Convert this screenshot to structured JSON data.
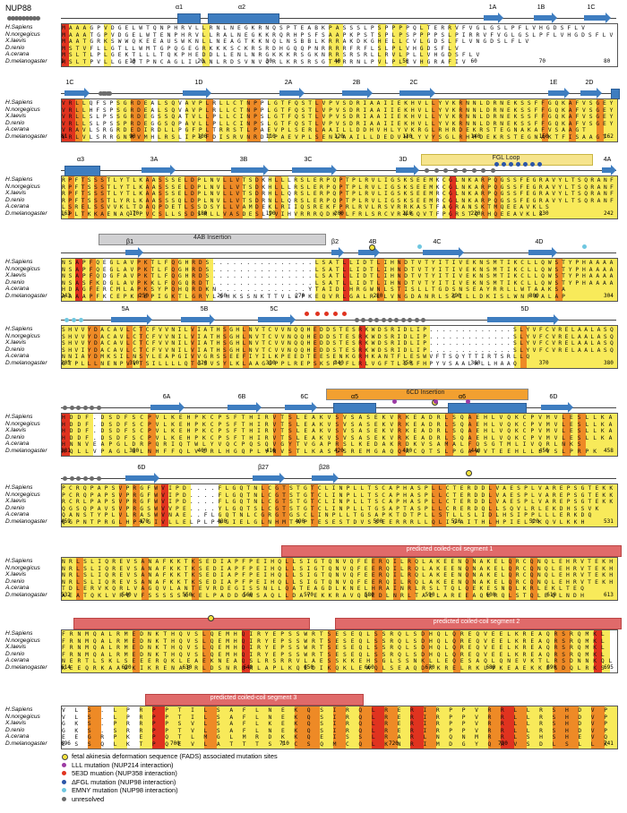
{
  "figure": {
    "title": "NUP88",
    "species": [
      "H.Sapiens",
      "N.norgegicus",
      "X.laevis",
      "D.renio",
      "A.cerana",
      "D.melanogaster"
    ],
    "colors": {
      "helix": "#3e7dc0",
      "unresolved": "#6b6b6b",
      "fgl": "#f6e48c",
      "ins4ab": "#d0d0d2",
      "ins6cd": "#f2a030",
      "coiled": "#e06a6a",
      "red": "#e0331f",
      "orange": "#ee8a26",
      "yellow": "#f8ea5a"
    }
  },
  "blocks": [
    {
      "ticks": [
        "1",
        "10",
        "20",
        "30",
        "40",
        "50",
        "60",
        "70",
        "80"
      ],
      "labels": [
        {
          "t": "α1",
          "x": 200
        },
        {
          "t": "α2",
          "x": 270
        },
        {
          "t": "1A",
          "x": 550
        },
        {
          "t": "1B",
          "x": 604
        },
        {
          "t": "1C",
          "x": 660
        }
      ],
      "rows": [
        "MAAAGPVDGELWTQNPHRVLLRNLNEGKRNQSPTEABKPASSSLPSPPPPQLTERRVFVGLGSLPFLVHGDSFLV",
        "MAAATGPVDGELWTENPHRVLLRALNEGKKRQRHPSFSAAPKPSTSPLPSPPPPSLPIRRVFVGLGSLPFLVHGDSFLV",
        "MAATGRKSWWQKEEAUSWKNLLNEAGTKKNQLNSBBLKRRAKDKGHELLCVLGDSLFLVNGDSLFLV",
        "MSTVFLLGTLLWMTGPQGEGRKKKSCKRSRDHGQQPNRRRRFRFLSLPLVHGDSFLV",
        "MSLTLPLGEKTLLLTQKPHEDDLLENLNRGKKKRSGKNRRSRSRLLRVLPLLVHGDSFLV",
        "MSLTPVLLGEQTPNCAGLILANLRDSVNVQRLKRSRSGTMRRNLPVLPLLVHGRAFIV"
      ]
    },
    {
      "ticks": [
        "81",
        "90",
        "100",
        "110",
        "120",
        "130",
        "140",
        "150",
        "162"
      ],
      "labels": [
        {
          "t": "1C",
          "x": 78
        },
        {
          "t": "1D",
          "x": 222
        },
        {
          "t": "2A",
          "x": 322
        },
        {
          "t": "2B",
          "x": 398
        },
        {
          "t": "2C",
          "x": 462
        },
        {
          "t": "1E",
          "x": 618
        },
        {
          "t": "2D",
          "x": 658
        }
      ],
      "rows": [
        "VRLLQFSPSGRDEALSQVAVPLRLLCTNPPLGTFQSTLVPVSDRIAAIIEKHVLLYVKRNNLDRNEKSSFFGQKAFVSGEY",
        "VRLLHFSPSGRDEALSQVAVPLRLLCTNPPLGTFQSTLVPVSDRIAAIIEKHVLLYVKRNNLDRNEKSSFFGQKAFVSGEY",
        "VRLLSLPSSGRDEGSSQATVLLPLLCINPSLGTFQSTLVPVSDRIAAIIEKHVLLYVKRNNLDRNEKSSFFGQKAFVSGEY",
        "VRLLSLPSSPRDEGGSQPAVLLPLLCINPSLGTFQSTLVPVSDRIAAIIEKHVLLYVKRNNLDRNEKSSFFGQKAFVSGEY",
        "VRAVLSRGRDEDIRDLLPGFPLTRRSTLPAEVPLSERLAAILLDDHVHLYVKRGLRHRDEKRSTEGNAKAFVSAAGT",
        "VRLVLSRRGNRVMHLRSLIPSFDISRVNRDTPAEVPLSENLAAILLDEDVHLYVYSGLRHRDEKRSTEGNAKTFISAAGT"
      ]
    },
    {
      "ticks": [
        "163",
        "170",
        "180",
        "190",
        "200",
        "210",
        "220",
        "230",
        "242"
      ],
      "labels": [
        {
          "t": "α3",
          "x": 90
        },
        {
          "t": "3A",
          "x": 172
        },
        {
          "t": "3B",
          "x": 272
        },
        {
          "t": "3C",
          "x": 344
        },
        {
          "t": "3D",
          "x": 450
        },
        {
          "t": "FGL Loop",
          "x": 565
        },
        {
          "t": "4A",
          "x": 678
        }
      ],
      "rows": [
        "RPFTSSSTLYTLKAASSSELDPLNVLLVTSDKHLLLRSLERPQPTPLRVLIGSKSEEMKCGLNKARPQGSSFEGRAVYLTSQRANF",
        "RPFTSSSTLYTLKAASSSELDPLNVLLVTSDKHLLLRSLERPQPTPLRVLIGSKSEEMKCGLNKARPQGSSFEGRAVYLTSQRANF",
        "RPFTSSSTLYTLKAASSSELDPLNVLLVTSDRHLLQRSLERPQPTPLRVLIGSKSEEMRCGLNKARPQGSSFEGRAVYLTSQRANF",
        "RPFTSSSTLYRLKAASSSQLDPLNVLLVTSDRNLLQRSLERPQPTPLRVLIGSKSEEMRCGLNKARPQGSSFEGRAVYLTSQRANF",
        "LSRELSSVVKLTDAQPDETLSSDSYLLVAMDEKLRIIQSREKFPRLRVLRSVRRKASTFAGRANSKTMQEEAVKLS",
        "LPLTKKAENAQIPVCSLLSSDSRLLVASDESLIVIHVRRRQDKRLFRLSRCVRNGQVTFPGRSTQRHQEEAVKLS"
      ]
    },
    {
      "ticks": [
        "243",
        "250",
        "260",
        "270",
        "280",
        "290",
        "300",
        "304"
      ],
      "labels": [
        {
          "t": "4AB Insertion",
          "x": 237
        },
        {
          "t": "β1",
          "x": 145
        },
        {
          "t": "β2",
          "x": 374
        },
        {
          "t": "4B",
          "x": 416
        },
        {
          "t": "4C",
          "x": 488
        },
        {
          "t": "4D",
          "x": 602
        }
      ],
      "rows": [
        "NSAPFQEGLAVPKTLFQGHRDS...............LSATLLIDTLIHNDTVTYITIVEKNSMTIKCLLQWSTYPHAAAA",
        "NSAPFQEGLAVPKTLFQGHRDS...............LSATLLIDTLIHNDTVTYITIVEKNSMTIKCLLQWSTYPHAAAA",
        "NSAPFQDGFAVPKTLFQGHRDS...............LSATLLIDTLIHNDTVTYITIVEKNSMTIKCLLQWSTYPHAAAA",
        "NSASFKDGLAVPKKLFQGQRDT...............LSATLLIDTLIHNDTVTYITIVEKNSMTIKCLLQWSTYPHAAAA",
        "HDAGFERCMLAPKSYPQHQRDKN.............YTAIDLHRGWNLSTISLLTGDSNSEAYRRLLWTAAKSA",
        "AAAAPFKCEPKFEPIGKTLGRYLSHKSSNKTTVLLPKEQVRLGALRLLVNGDANRLSSILLDKISLWNPAALAP"
      ]
    },
    {
      "ticks": [
        "305",
        "310",
        "320",
        "330",
        "340",
        "350",
        "360",
        "370",
        "380"
      ],
      "labels": [
        {
          "t": "5A",
          "x": 140
        },
        {
          "t": "5B",
          "x": 228
        },
        {
          "t": "5C",
          "x": 306
        },
        {
          "t": "5D",
          "x": 586
        }
      ],
      "rows": [
        "SHVVYDACAVLCTCFVVNILVIATHSGHLNVTCVVNQQHEDDSTESRKWDSRIDLIP.............SLYVFCVRELAALASQ",
        "SHVVYDACAVLCTCFVVNILVIATHSGHLNVTCVVNQQHEDDSTESRKWDSRIDLIP.............SLYVFCVRELAALASQ",
        "SHVVYDACAVLCTCFVVNILVIATHSGHLNVTCVVNQQHEDDSTESRKWDSRIDLIP.............SLYVFCVRELAALASQ",
        "SHVIYDACAVLCTCFVVNILVIATHSGHLNVTCVVNQQHEDDSTESRKWDSRIDLIP.............SLYVFCVRELAALASQ",
        "NNIAYDMKSILNSYLEAPGIVVGRSSEEFIYILKPEEDTEESENKGRHKANTFLESWVFTSQYTTIRTSRLLQ",
        "GTPLLLNENPVVTSILLLLQTGSVSYLKLAAGGPPLREPSKSFLFLRLVGFTLSSFHPYVSAALALLHAAQ"
      ]
    },
    {
      "ticks": [
        "381",
        "390",
        "400",
        "410",
        "420",
        "430",
        "440",
        "450",
        "458"
      ],
      "labels": [
        {
          "t": "6A",
          "x": 186
        },
        {
          "t": "6B",
          "x": 270
        },
        {
          "t": "6C",
          "x": 340
        },
        {
          "t": "α5",
          "x": 396
        },
        {
          "t": "6CD Insertion",
          "x": 475
        },
        {
          "t": "α6",
          "x": 516
        },
        {
          "t": "6D",
          "x": 618
        }
      ],
      "rows": [
        "HDDF.DSDFSCPVLKEHPKCPSFTHIRVTSLEAKVSVSASEKVRKEADRLSQAEHLVQKCPVMVLESLLKA",
        "HDDF.DSDFSCPVLKEHPKCPSFTHIRVTSLEAKVSVSASEKVRKEADRLSQAEHLVQKCPVMVLESLLKA",
        "HDDF.DSDFSCPVLKEHPKCPSFTHIRVTSLEAKVSVSASEKVRKEADRLSQAEHLVQKCPVMVLESLLKA",
        "HDDF.DSDFSCPVLKEHPKCPSFTHIRVTSLEAKVSVSASEKVRKEADRLSQAEHLVQKCPVMVLESLLKA",
        "HNNVEAPGLDRPQRIQTWLYVQCPQSQVGYTVGAPRSLKEDAKRDKVSAMALFQSGTMLIVQRLNKS",
        "HQLLVPAGLGLNHFFQLVCRLHGQPLVNVSTLKASSSREMGAQQRCQTSLPGAAVTEEHLLLVSLPRPK"
      ]
    },
    {
      "ticks": [
        "459",
        "470",
        "480",
        "490",
        "500",
        "510",
        "520",
        "531"
      ],
      "labels": [
        {
          "t": "6D",
          "x": 158
        },
        {
          "t": "β27",
          "x": 294
        },
        {
          "t": "β28",
          "x": 362
        }
      ],
      "rows": [
        "PCRQPAPSVPRGFWVIPD....FLGQTNLCGTSTGTCLINPLLTSCAPHASPLLCTERDDLVAESPLVAREPSGTEKK",
        "PCRQPAPSVPRGFWVIPD....FLGQTNLCGTSTGTCLINPLLTSCAPHASPLLCTERDDLVAESPLVAREPSGTEKK",
        "RCRLPAPSVPRGFWVIPD....FLGQTNLCGTSTGTCLINPLLTSCAPHASPLLCTERDDLVAESPLVAREPSGTEKK",
        "QGSQPAVSVPRGSWVVPE....YLGQTSLCGTSTGTCLINPLLTGSAPTASPLLCRERDQLLSQVLRLEKDHSSVK",
        "QANSTYPLVLRASWVNAE..FLGQTNLCGRGTGSCLINPLLTGSAPKTDTPLLSTLLSLIDLHSIPPLLLERKDQ",
        "QGPNTPRGLHPAGIVLLELPLPAGIELGLNHMTAPTESESTDVSSEERRRLLQLIGAITHLHPIELTKQVLKKH"
      ]
    },
    {
      "ticks": [
        "532",
        "540",
        "550",
        "560",
        "570",
        "580",
        "590",
        "600",
        "610",
        "613"
      ],
      "labels": [
        {
          "t": "predicted coiled-coil segment 1",
          "x": 502
        }
      ],
      "rows": [
        "NRLSLIQREVSANAFKKTKSEDIAPFPEIHQLLSIGTQNVQFEERQILRQLAKEENQNAKELQRCQNQLEHRVTEKH",
        "NRLSLIQREVSANAFKKTKSEDIAPFPEIHQLLSIGTQNVQFEERQILRQLAKEENQNAKELQRCQNQLEHRVTEKH",
        "NRLSLIQREVSANAFKKTKSEDIAPFPEIHQLLSIGTQNVQFEERQILRQLAKEENQNAKELQRCQNQLEHRVTEKH",
        "NRLSLIQREVSANAFKKTKSEDIAPFPEIHQLLSIGTQNVQFEERQILRQLAKEENQNAKELQRCQNQLEHRVTEKH",
        "TDLERVKQRLVAGQVLANTEVRDEGISSNLLQATEAGDLKNELHRAINRLRSLTQLQEKESNQLKRLEKLTEQ",
        "AEATQKLVREVFSSSSSKKELPADDGNSAQLLDAYEKKRAVQQEDLNRLTALLAREEAQLRQLSTQLEQLNDH"
      ]
    },
    {
      "ticks": [
        "614",
        "620",
        "630",
        "640",
        "650",
        "660",
        "670",
        "680",
        "690",
        "695"
      ],
      "labels": [
        {
          "t": "predicted coiled-coil segment 2",
          "x": 532
        }
      ],
      "rows": [
        "FRNMQALRMEDNKTHQVSLQEMHQIRYEPSSWRTSESEQLSSRQLSDHQLQREQVEELKREAQRSRQMKL",
        "FRNMQALRMEDNKTHQVSLQEMHQIRYEPSSWRTSESEQLSSRQLSDHQLQREQVEELKREAQRSRQMKL",
        "FRNMQALRMEDNKTHQVSLQEMHQIRYEPSSWRTSESEQLSSRQLSDHQLQREQVEELKREAQRSRQMKL",
        "FRNMQALRMEDNKTHQVSLQEMHQIRYEPSSWRTSESEQLSSRQLSDHQLQREQVEELKREAQRSRQMKL",
        "NERTLSKLSEEERQKLEAEKNEAQSLRSRRVLAESSKKEHSGLSSNKLLEQESAQLQNEVKTLRSDNNKQL",
        "KEEQRKAADKIKRENAERLDSNRQRLAPLKQEDIKQKLEAQLSEAQDKKRELRKLVKEAEKKESDQLRKS"
      ]
    },
    {
      "ticks": [
        "696",
        "700",
        "710",
        "720",
        "730",
        "741"
      ],
      "labels": [
        {
          "t": "predicted coiled-coil segment 3",
          "x": 283
        }
      ],
      "rows": [
        "VLS.LPRPPTILSAFLNEKQSIRQLRERIRPPVRRLLRSHDVP",
        "VLS.LPRPPTILSAFLNEKQSIRQLRERIRPPVRRLLRSHDVP",
        "GKS.PRRPPSVLSAFLKEKQSIRQLRERIRPPVRRLLRSHDVP",
        "GKS.SRRPPTVLSAFLNEKQSIRQLRERIRPPVRRLLRSHDVP",
        "EEGRPKEPQTLMGLMRDKKQEISSLRARLNQNMRRLSHSHEVQ",
        "ESSQLKTPQEVLATTTSTCSQMCQLKNRIMDGYQRVSDLSLLK"
      ]
    }
  ],
  "legend": [
    {
      "color": "#f3e33d",
      "text": "fetal akinesia deformation sequence (FADS) associated mutation sites"
    },
    {
      "color": "#9b3aa3",
      "text": "LLL mutation (NUP214 interaction)"
    },
    {
      "color": "#e0331f",
      "text": "5E3D muation (NUP358 interaction)"
    },
    {
      "color": "#2b55a8",
      "text": "ΔFGL mutation (NUP98 interaction)"
    },
    {
      "color": "#6fc7e0",
      "text": "EMNY mutation (NUP98 interaction)"
    },
    {
      "color": "#6b6b6b",
      "text": "unresolved"
    }
  ]
}
